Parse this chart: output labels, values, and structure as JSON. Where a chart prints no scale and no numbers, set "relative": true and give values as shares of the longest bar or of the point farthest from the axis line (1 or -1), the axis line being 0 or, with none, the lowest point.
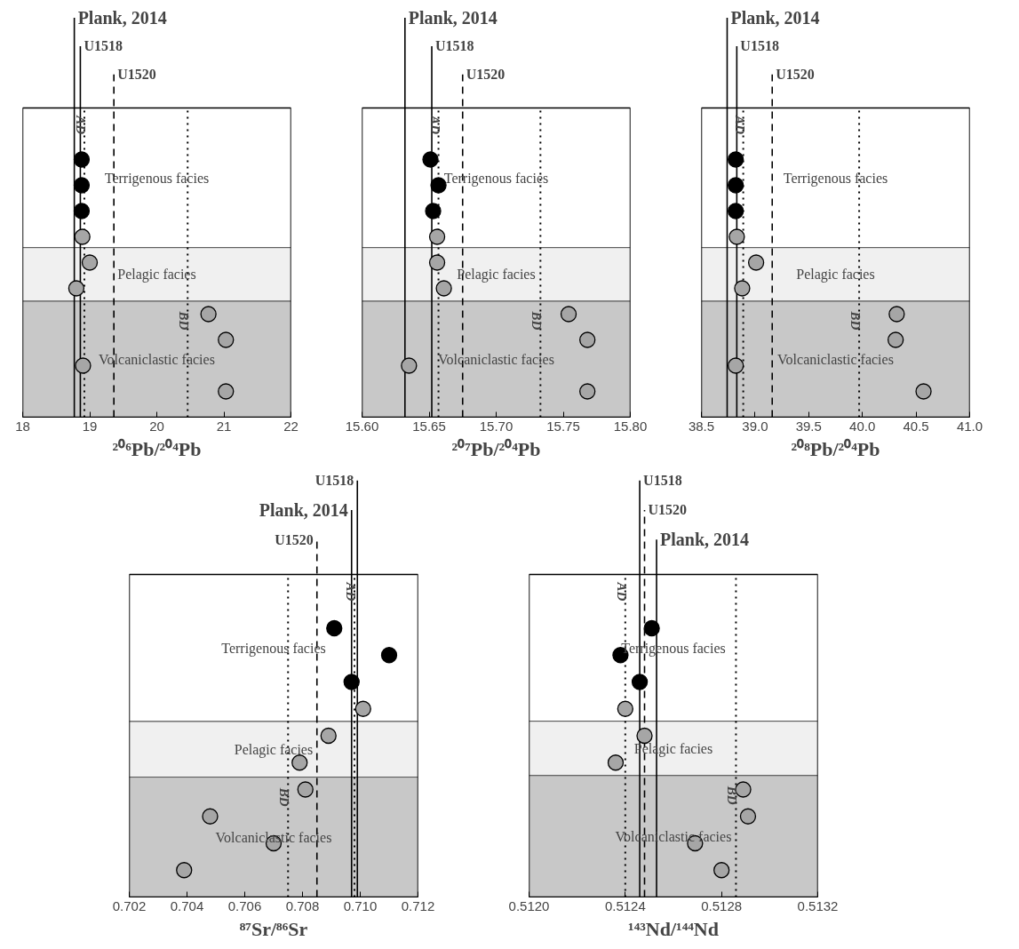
{
  "chart_data": [
    {
      "type": "scatter",
      "relative": true,
      "marker": "circle",
      "tick_labels": "x",
      "xlabel": "²⁰⁶Pb/²⁰⁴Pb",
      "series": [
        {
          "color": "#000000",
          "x": [
            18.88,
            18.88,
            18.88
          ],
          "values": [
            1,
            0.9,
            0.8
          ]
        },
        {
          "color": "#a6a6a6",
          "x": [
            18.89,
            19.0,
            18.8,
            20.77,
            21.03,
            18.9,
            21.03
          ],
          "values": [
            0.7,
            0.6,
            0.5,
            0.4,
            0.3,
            0.2,
            0.1
          ]
        }
      ],
      "xlim": [
        18,
        22
      ],
      "xticks": [
        18,
        19,
        20,
        21,
        22
      ],
      "bands": [
        {
          "axis": "y",
          "from": 0.658,
          "to": 1.2,
          "label": "Terrigenous facies",
          "color": "#ffffff"
        },
        {
          "axis": "y",
          "from": 0.45,
          "to": 0.658,
          "label": "Pelagic facies",
          "color": "#f0f0f0"
        },
        {
          "axis": "y",
          "from": 0,
          "to": 0.45,
          "label": "Volcaniclastic facies",
          "color": "#c8c8c8"
        }
      ],
      "ref_lines": [
        {
          "axis": "x",
          "value": 18.77,
          "label": "Plank, 2014",
          "line_style": "solid"
        },
        {
          "axis": "x",
          "value": 18.86,
          "label": "U1518",
          "line_style": "solid"
        },
        {
          "axis": "x",
          "value": 19.36,
          "label": "U1520",
          "line_style": "dashed"
        },
        {
          "axis": "x",
          "value": 18.92,
          "label": "AD",
          "line_style": "dotted"
        },
        {
          "axis": "x",
          "value": 20.46,
          "label": "BD",
          "line_style": "dotted"
        }
      ]
    },
    {
      "type": "scatter",
      "relative": true,
      "marker": "circle",
      "tick_labels": "x",
      "xlabel": "²⁰⁷Pb/²⁰⁴Pb",
      "series": [
        {
          "color": "#000000",
          "x": [
            15.651,
            15.657,
            15.653
          ],
          "values": [
            1,
            0.9,
            0.8
          ]
        },
        {
          "color": "#a6a6a6",
          "x": [
            15.656,
            15.656,
            15.661,
            15.754,
            15.768,
            15.635,
            15.768
          ],
          "values": [
            0.7,
            0.6,
            0.5,
            0.4,
            0.3,
            0.2,
            0.1
          ]
        }
      ],
      "xlim": [
        15.6,
        15.8
      ],
      "xticks": [
        {
          "value": 15.6,
          "label": "15.60"
        },
        15.65,
        {
          "value": 15.7,
          "label": "15.70"
        },
        15.75,
        {
          "value": 15.8,
          "label": "15.80"
        }
      ],
      "bands": [
        {
          "axis": "y",
          "from": 0.658,
          "to": 1.2,
          "label": "Terrigenous facies",
          "color": "#ffffff"
        },
        {
          "axis": "y",
          "from": 0.45,
          "to": 0.658,
          "label": "Pelagic facies",
          "color": "#f0f0f0"
        },
        {
          "axis": "y",
          "from": 0,
          "to": 0.45,
          "label": "Volcaniclastic facies",
          "color": "#c8c8c8"
        }
      ],
      "ref_lines": [
        {
          "axis": "x",
          "value": 15.632,
          "label": "Plank, 2014",
          "line_style": "solid"
        },
        {
          "axis": "x",
          "value": 15.652,
          "label": "U1518",
          "line_style": "solid"
        },
        {
          "axis": "x",
          "value": 15.675,
          "label": "U1520",
          "line_style": "dashed"
        },
        {
          "axis": "x",
          "value": 15.657,
          "label": "AD",
          "line_style": "dotted"
        },
        {
          "axis": "x",
          "value": 15.733,
          "label": "BD",
          "line_style": "dotted"
        }
      ]
    },
    {
      "type": "scatter",
      "relative": true,
      "marker": "circle",
      "tick_labels": "x",
      "xlabel": "²⁰⁸Pb/²⁰⁴Pb",
      "series": [
        {
          "color": "#000000",
          "x": [
            38.82,
            38.82,
            38.82
          ],
          "values": [
            1,
            0.9,
            0.8
          ]
        },
        {
          "color": "#a6a6a6",
          "x": [
            38.83,
            39.01,
            38.88,
            40.32,
            40.31,
            38.82,
            40.57
          ],
          "values": [
            0.7,
            0.6,
            0.5,
            0.4,
            0.3,
            0.2,
            0.1
          ]
        }
      ],
      "xlim": [
        38.5,
        41.0
      ],
      "xticks": [
        38.5,
        {
          "value": 39.0,
          "label": "39.0"
        },
        39.5,
        {
          "value": 40.0,
          "label": "40.0"
        },
        40.5,
        {
          "value": 41.0,
          "label": "41.0"
        }
      ],
      "bands": [
        {
          "axis": "y",
          "from": 0.658,
          "to": 1.2,
          "label": "Terrigenous facies",
          "color": "#ffffff"
        },
        {
          "axis": "y",
          "from": 0.45,
          "to": 0.658,
          "label": "Pelagic facies",
          "color": "#f0f0f0"
        },
        {
          "axis": "y",
          "from": 0,
          "to": 0.45,
          "label": "Volcaniclastic facies",
          "color": "#c8c8c8"
        }
      ],
      "ref_lines": [
        {
          "axis": "x",
          "value": 38.74,
          "label": "Plank, 2014",
          "line_style": "solid"
        },
        {
          "axis": "x",
          "value": 38.83,
          "label": "U1518",
          "line_style": "solid"
        },
        {
          "axis": "x",
          "value": 39.16,
          "label": "U1520",
          "line_style": "dashed"
        },
        {
          "axis": "x",
          "value": 38.89,
          "label": "AD",
          "line_style": "dotted"
        },
        {
          "axis": "x",
          "value": 39.97,
          "label": "BD",
          "line_style": "dotted"
        }
      ]
    },
    {
      "type": "scatter",
      "relative": true,
      "marker": "circle",
      "tick_labels": "x",
      "xlabel": "⁸⁷Sr/⁸⁶Sr",
      "series": [
        {
          "color": "#000000",
          "x": [
            0.7091,
            0.711,
            0.7097
          ],
          "values": [
            1,
            0.9,
            0.8
          ]
        },
        {
          "color": "#a6a6a6",
          "x": [
            0.7101,
            0.7089,
            0.7079,
            0.7081,
            0.7048,
            0.707,
            0.7039
          ],
          "values": [
            0.7,
            0.6,
            0.5,
            0.4,
            0.3,
            0.2,
            0.1
          ]
        }
      ],
      "xlim": [
        0.702,
        0.712
      ],
      "xticks": [
        0.702,
        0.704,
        0.706,
        0.708,
        {
          "value": 0.71,
          "label": "0.710"
        },
        0.712
      ],
      "bands": [
        {
          "axis": "y",
          "from": 0.653,
          "to": 1.2,
          "label": "Terrigenous facies",
          "color": "#ffffff"
        },
        {
          "axis": "y",
          "from": 0.446,
          "to": 0.653,
          "label": "Pelagic facies",
          "color": "#f0f0f0"
        },
        {
          "axis": "y",
          "from": 0,
          "to": 0.446,
          "label": "Volcaniclastic facies",
          "color": "#c8c8c8"
        }
      ],
      "ref_lines": [
        {
          "axis": "x",
          "value": 0.7097,
          "label": "Plank, 2014",
          "line_style": "solid"
        },
        {
          "axis": "x",
          "value": 0.7099,
          "label": "U1518",
          "line_style": "solid"
        },
        {
          "axis": "x",
          "value": 0.7085,
          "label": "U1520",
          "line_style": "dashed"
        },
        {
          "axis": "x",
          "value": 0.7098,
          "label": "AD",
          "line_style": "dotted"
        },
        {
          "axis": "x",
          "value": 0.7075,
          "label": "BD",
          "line_style": "dotted"
        }
      ]
    },
    {
      "type": "scatter",
      "relative": true,
      "marker": "circle",
      "tick_labels": "x",
      "xlabel": "¹⁴³Nd/¹⁴⁴Nd",
      "series": [
        {
          "color": "#000000",
          "x": [
            0.51251,
            0.51238,
            0.51246
          ],
          "values": [
            1,
            0.9,
            0.8
          ]
        },
        {
          "color": "#a6a6a6",
          "x": [
            0.5124,
            0.51248,
            0.51236,
            0.51289,
            0.51291,
            0.51269,
            0.5128
          ],
          "values": [
            0.7,
            0.6,
            0.5,
            0.4,
            0.3,
            0.2,
            0.1
          ]
        }
      ],
      "xlim": [
        0.512,
        0.5132
      ],
      "xticks": [
        {
          "value": 0.512,
          "label": "0.5120"
        },
        0.5124,
        0.5128,
        0.5132
      ],
      "bands": [
        {
          "axis": "y",
          "from": 0.654,
          "to": 1.2,
          "label": "Terrigenous facies",
          "color": "#ffffff"
        },
        {
          "axis": "y",
          "from": 0.452,
          "to": 0.654,
          "label": "Pelagic facies",
          "color": "#f0f0f0"
        },
        {
          "axis": "y",
          "from": 0,
          "to": 0.452,
          "label": "Volcaniclastic facies",
          "color": "#c8c8c8"
        }
      ],
      "ref_lines": [
        {
          "axis": "x",
          "value": 0.51253,
          "label": "Plank, 2014",
          "line_style": "solid"
        },
        {
          "axis": "x",
          "value": 0.51246,
          "label": "U1518",
          "line_style": "solid"
        },
        {
          "axis": "x",
          "value": 0.51248,
          "label": "U1520",
          "line_style": "dashed"
        },
        {
          "axis": "x",
          "value": 0.5124,
          "label": "AD",
          "line_style": "dotted"
        },
        {
          "axis": "x",
          "value": 0.51286,
          "label": "BD",
          "line_style": "dotted"
        }
      ]
    }
  ]
}
